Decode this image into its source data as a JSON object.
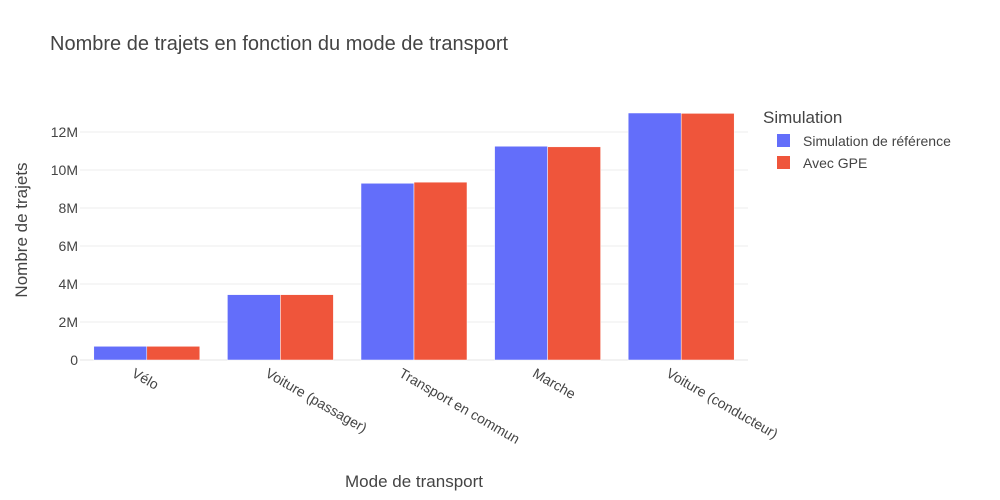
{
  "chart_data": {
    "type": "bar",
    "title": "Nombre de trajets en fonction du mode de transport",
    "xlabel": "Mode de transport",
    "ylabel": "Nombre de trajets",
    "categories": [
      "Vélo",
      "Voiture (passager)",
      "Transport en commun",
      "Marche",
      "Voiture (conducteur)"
    ],
    "series": [
      {
        "name": "Simulation de référence",
        "color": "#636efa",
        "values": [
          720000,
          3440000,
          9300000,
          11250000,
          13000000
        ]
      },
      {
        "name": "Avec GPE",
        "color": "#ef553b",
        "values": [
          720000,
          3440000,
          9360000,
          11220000,
          12980000
        ]
      }
    ],
    "ylim": [
      0,
      13000000
    ],
    "yticks": [
      0,
      2000000,
      4000000,
      6000000,
      8000000,
      10000000,
      12000000
    ],
    "ytick_labels": [
      "0",
      "2M",
      "4M",
      "6M",
      "8M",
      "10M",
      "12M"
    ],
    "legend": {
      "title": "Simulation",
      "position": "top-right"
    },
    "grid": true
  }
}
